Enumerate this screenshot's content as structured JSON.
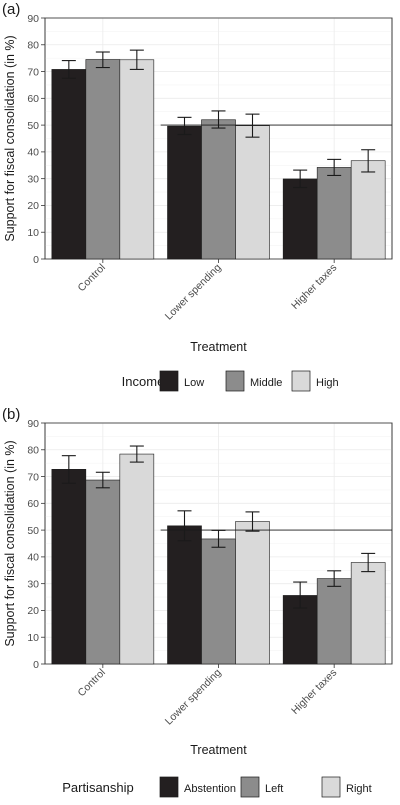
{
  "chart_data": [
    {
      "type": "bar",
      "panel_label": "(a)",
      "categories": [
        "Control",
        "Lower spending",
        "Higher taxes"
      ],
      "series": [
        {
          "name": "Low",
          "color": "#231f20",
          "values": [
            70.8,
            49.6,
            29.9
          ],
          "ci_low": [
            67.5,
            46.5,
            26.7
          ],
          "ci_high": [
            74.1,
            52.9,
            33.2
          ]
        },
        {
          "name": "Middle",
          "color": "#8c8c8c",
          "values": [
            74.5,
            52.0,
            34.2
          ],
          "ci_low": [
            71.5,
            48.9,
            31.2
          ],
          "ci_high": [
            77.3,
            55.3,
            37.2
          ]
        },
        {
          "name": "High",
          "color": "#d9d9d9",
          "values": [
            74.4,
            49.8,
            36.7
          ],
          "ci_low": [
            70.8,
            45.5,
            32.5
          ],
          "ci_high": [
            78.0,
            54.1,
            40.8
          ]
        }
      ],
      "reference_line": 50,
      "ylim": [
        0,
        90
      ],
      "yticks": [
        0,
        10,
        20,
        30,
        40,
        50,
        60,
        70,
        80,
        90
      ],
      "ylabel": "Support for fiscal consolidation (in %)",
      "xlabel": "Treatment",
      "legend_title": "Income",
      "legend_position": "bottom",
      "grid": true
    },
    {
      "type": "bar",
      "panel_label": "(b)",
      "categories": [
        "Control",
        "Lower spending",
        "Higher taxes"
      ],
      "series": [
        {
          "name": "Abstention",
          "color": "#231f20",
          "values": [
            72.7,
            51.6,
            25.6
          ],
          "ci_low": [
            67.5,
            46.0,
            20.9
          ],
          "ci_high": [
            77.8,
            57.2,
            30.6
          ]
        },
        {
          "name": "Left",
          "color": "#8c8c8c",
          "values": [
            68.7,
            46.7,
            31.9
          ],
          "ci_low": [
            65.8,
            43.6,
            29.0
          ],
          "ci_high": [
            71.6,
            49.9,
            34.8
          ]
        },
        {
          "name": "Right",
          "color": "#d9d9d9",
          "values": [
            78.4,
            53.2,
            37.9
          ],
          "ci_low": [
            75.4,
            49.6,
            34.5
          ],
          "ci_high": [
            81.4,
            56.8,
            41.3
          ]
        }
      ],
      "reference_line": 50,
      "ylim": [
        0,
        90
      ],
      "yticks": [
        0,
        10,
        20,
        30,
        40,
        50,
        60,
        70,
        80,
        90
      ],
      "ylabel": "Support for fiscal consolidation (in %)",
      "xlabel": "Treatment",
      "legend_title": "Partisanship",
      "legend_position": "bottom",
      "grid": true
    }
  ]
}
